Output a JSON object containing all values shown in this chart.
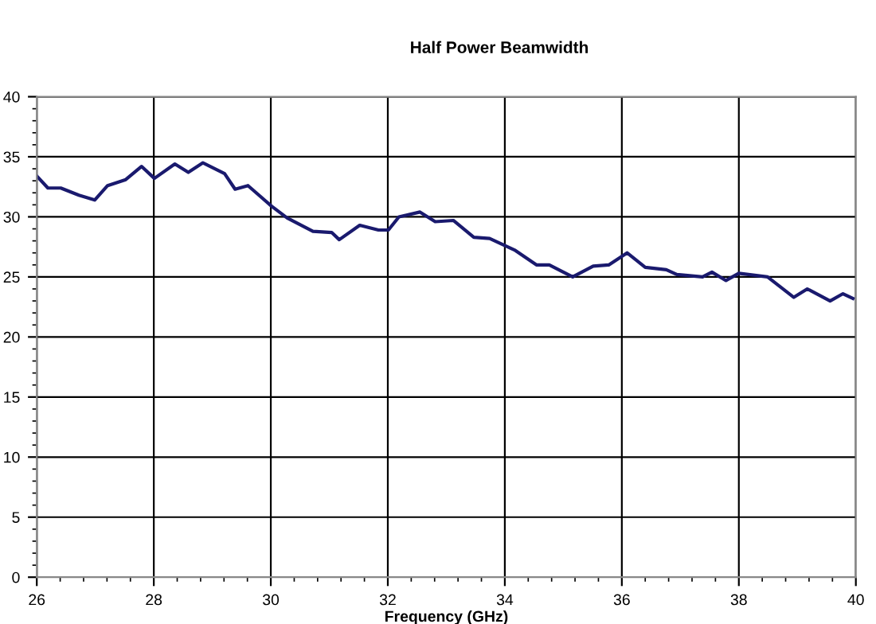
{
  "chart_data": {
    "type": "line",
    "title": "Half Power Beamwidth",
    "xlabel": "Frequency (GHz)",
    "x": [
      26.0,
      26.19,
      26.41,
      26.72,
      26.99,
      27.21,
      27.52,
      27.79,
      28.01,
      28.36,
      28.59,
      28.84,
      29.21,
      29.39,
      29.61,
      30.01,
      30.28,
      30.72,
      31.04,
      31.17,
      31.52,
      31.84,
      32.01,
      32.19,
      32.55,
      32.81,
      33.12,
      33.47,
      33.74,
      34.18,
      34.54,
      34.76,
      35.16,
      35.51,
      35.78,
      36.09,
      36.4,
      36.76,
      36.94,
      37.38,
      37.54,
      37.78,
      38.0,
      38.49,
      38.94,
      39.17,
      39.56,
      39.78,
      39.95
    ],
    "series": [
      {
        "color": "#1a1a6e",
        "values": [
          33.4,
          32.4,
          32.4,
          31.8,
          31.4,
          32.6,
          33.1,
          34.2,
          33.2,
          34.4,
          33.7,
          34.5,
          33.6,
          32.3,
          32.6,
          30.9,
          29.9,
          28.8,
          28.7,
          28.1,
          29.3,
          28.9,
          28.9,
          30.0,
          30.4,
          29.6,
          29.7,
          28.3,
          28.2,
          27.2,
          26.0,
          26.0,
          25.0,
          25.9,
          26.0,
          27.0,
          25.8,
          25.6,
          25.2,
          25.0,
          25.4,
          24.7,
          25.3,
          25.0,
          23.3,
          24.0,
          23.0,
          23.6,
          23.2
        ]
      }
    ],
    "xlim": [
      26,
      40
    ],
    "xticks": [
      26,
      28,
      30,
      32,
      34,
      36,
      38,
      40
    ],
    "ylim": [
      0,
      40
    ],
    "yticks": [
      0,
      5,
      10,
      15,
      20,
      25,
      30,
      35,
      40
    ],
    "grid": true,
    "legend": false,
    "marker": "none",
    "line_style": "solid"
  }
}
